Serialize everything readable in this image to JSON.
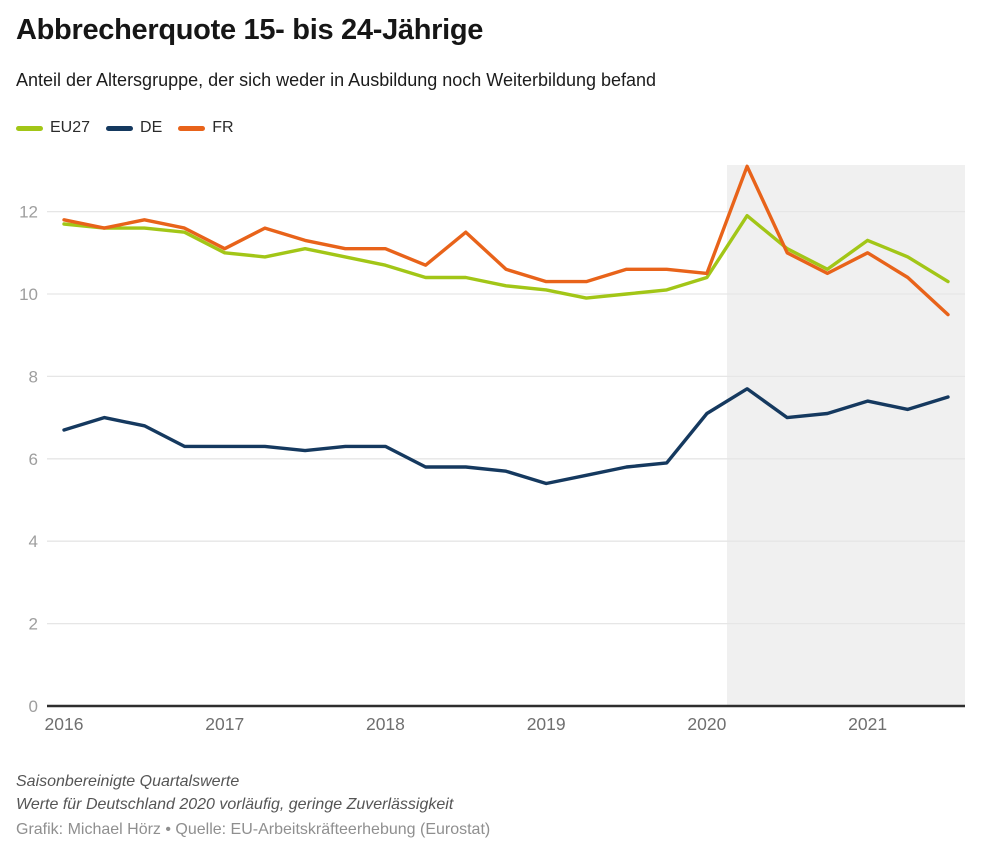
{
  "header": {
    "title": "Abbrecherquote 15- bis 24-Jährige",
    "subtitle": "Anteil der Altersgruppe, der sich weder in Ausbildung noch Weiterbildung befand"
  },
  "legend": [
    {
      "label": "EU27",
      "color": "#a2c617"
    },
    {
      "label": "DE",
      "color": "#15395f"
    },
    {
      "label": "FR",
      "color": "#e8631a"
    }
  ],
  "chart_data": {
    "type": "line",
    "title": "Abbrecherquote 15- bis 24-Jährige",
    "subtitle": "Anteil der Altersgruppe, der sich weder in Ausbildung noch Weiterbildung befand",
    "categories": [
      "2016-Q1",
      "2016-Q2",
      "2016-Q3",
      "2016-Q4",
      "2017-Q1",
      "2017-Q2",
      "2017-Q3",
      "2017-Q4",
      "2018-Q1",
      "2018-Q2",
      "2018-Q3",
      "2018-Q4",
      "2019-Q1",
      "2019-Q2",
      "2019-Q3",
      "2019-Q4",
      "2020-Q1",
      "2020-Q2",
      "2020-Q3",
      "2020-Q4",
      "2021-Q1",
      "2021-Q2",
      "2021-Q3"
    ],
    "series": [
      {
        "name": "EU27",
        "color": "#a2c617",
        "values": [
          11.7,
          11.6,
          11.6,
          11.5,
          11.0,
          10.9,
          11.1,
          10.9,
          10.7,
          10.4,
          10.4,
          10.2,
          10.1,
          9.9,
          10.0,
          10.1,
          10.4,
          11.9,
          11.1,
          10.6,
          11.3,
          10.9,
          10.3
        ]
      },
      {
        "name": "DE",
        "color": "#15395f",
        "values": [
          6.7,
          7.0,
          6.8,
          6.3,
          6.3,
          6.3,
          6.2,
          6.3,
          6.3,
          5.8,
          5.8,
          5.7,
          5.4,
          5.6,
          5.8,
          5.9,
          7.1,
          7.7,
          7.0,
          7.1,
          7.4,
          7.2,
          7.5
        ]
      },
      {
        "name": "FR",
        "color": "#e8631a",
        "values": [
          11.8,
          11.6,
          11.8,
          11.6,
          11.1,
          11.6,
          11.3,
          11.1,
          11.1,
          10.7,
          11.5,
          10.6,
          10.3,
          10.3,
          10.6,
          10.6,
          10.5,
          13.1,
          11.0,
          10.5,
          11.0,
          10.4,
          9.5
        ]
      }
    ],
    "x_tick_labels": [
      "2016",
      "2017",
      "2018",
      "2019",
      "2020",
      "2021"
    ],
    "x_tick_indices": [
      0,
      4,
      8,
      12,
      16,
      20
    ],
    "yticks": [
      0,
      2,
      4,
      6,
      8,
      10,
      12
    ],
    "ylim": [
      0,
      13.13
    ],
    "grid": true,
    "legend_position": "top-left",
    "highlight_region": {
      "from_index": 16.5,
      "to": "end",
      "color": "#f0f0f0"
    },
    "colors": {
      "grid": "#e6e6e6",
      "axis": "#2e2e2e",
      "y_tick_label": "#9e9e9e",
      "x_tick_label": "#6f6f6f"
    }
  },
  "footer": {
    "note1": "Saisonbereinigte Quartalswerte",
    "note2": "Werte für Deutschland 2020 vorläufig, geringe Zuverlässigkeit",
    "credit": "Grafik: Michael Hörz • Quelle: EU-Arbeitskräfteerhebung (Eurostat)"
  }
}
